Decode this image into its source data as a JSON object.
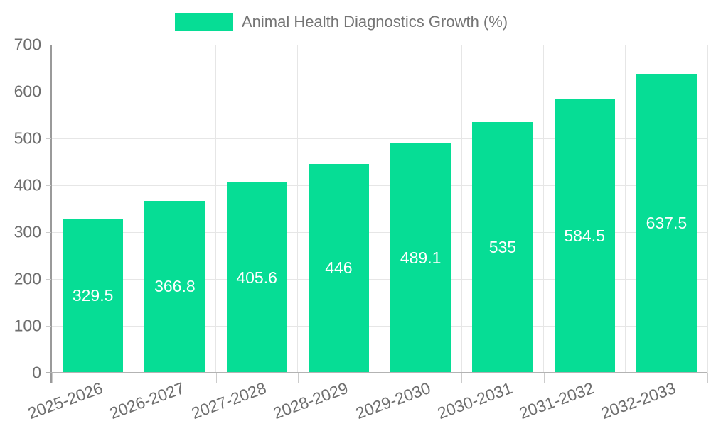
{
  "chart_data": {
    "type": "bar",
    "title": "Animal Health Diagnostics Growth (%)",
    "categories": [
      "2025-2026",
      "2026-2027",
      "2027-2028",
      "2028-2029",
      "2029-2030",
      "2030-2031",
      "2031-2032",
      "2032-2033"
    ],
    "series": [
      {
        "name": "Animal Health Diagnostics Growth (%)",
        "values": [
          329.5,
          366.8,
          405.6,
          446,
          489.1,
          535,
          584.5,
          637.5
        ]
      }
    ],
    "bar_value_labels": [
      "329.5",
      "366.8",
      "405.6",
      "446",
      "489.1",
      "535",
      "584.5",
      "637.5"
    ],
    "xlabel": "",
    "ylabel": "",
    "ylim": [
      0,
      700
    ],
    "yticks": [
      0,
      100,
      200,
      300,
      400,
      500,
      600,
      700
    ],
    "grid": true,
    "legend_position": "top-center",
    "x_label_rotation_deg": -20,
    "colors": {
      "bar": "#06DD95",
      "bar_label": "#FFFFFF",
      "legend_text": "#757575",
      "axis_text": "#6E6E6E",
      "grid_line": "#E6E6E6",
      "axis_line": "#9A9A9A",
      "baseline": "#B3B3B3",
      "tick": "#CCCCCC",
      "background": "#FFFFFF"
    }
  }
}
